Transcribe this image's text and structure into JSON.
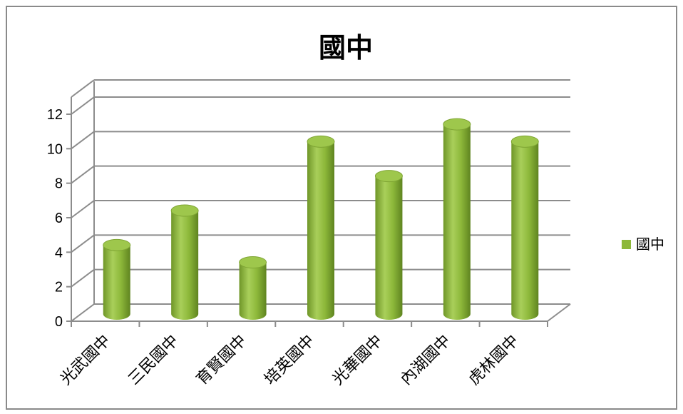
{
  "chart_data": {
    "type": "bar",
    "title": "國中",
    "categories": [
      "光武國中",
      "三民國中",
      "育賢國中",
      "培英國中",
      "光華國中",
      "內湖國中",
      "虎林國中"
    ],
    "series": [
      {
        "name": "國中",
        "values": [
          4,
          6,
          3,
          10,
          8,
          11,
          10
        ],
        "color": "#8db83a"
      }
    ],
    "y_ticks": [
      "0",
      "2",
      "4",
      "6",
      "8",
      "10",
      "12"
    ],
    "ylim": [
      0,
      12
    ],
    "grid": true,
    "legend_position": "right",
    "style": "3d-cylinder"
  }
}
